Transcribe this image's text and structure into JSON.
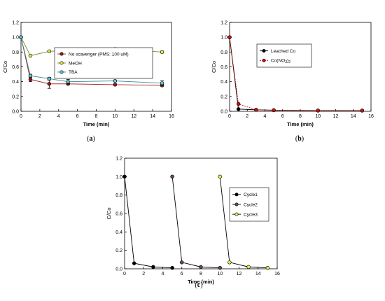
{
  "chart_data": [
    {
      "type": "line",
      "panel_label": "(a)",
      "xlabel": "Time (min)",
      "ylabel": "C/Co",
      "xlim": [
        0,
        16
      ],
      "ylim": [
        0,
        1.2
      ],
      "xticks": [
        "0",
        "2",
        "4",
        "6",
        "8",
        "10",
        "12",
        "14",
        "16"
      ],
      "yticks": [
        "0.0",
        "0.2",
        "0.4",
        "0.6",
        "0.8",
        "1.0",
        "1.2"
      ],
      "legend_position": "center-right",
      "series": [
        {
          "name": "No scavenger (PMS: 100 uM)",
          "color": "#a31515",
          "fill": "#a31515",
          "x": [
            0,
            1,
            3,
            5,
            10,
            15
          ],
          "y": [
            1.0,
            0.43,
            0.37,
            0.37,
            0.36,
            0.35
          ],
          "err": [
            0,
            0.03,
            0.06,
            0.01,
            0.01,
            0.01
          ]
        },
        {
          "name": "MeOH",
          "color": "#6b8e23",
          "fill": "#e6e84a",
          "x": [
            0,
            1,
            3,
            5,
            10,
            15
          ],
          "y": [
            1.0,
            0.75,
            0.81,
            0.82,
            0.84,
            0.8
          ],
          "err": [
            0,
            0,
            0.01,
            0.03,
            0.01,
            0.01
          ]
        },
        {
          "name": "TBA",
          "color": "#3b8a94",
          "fill": "#5fc4d6",
          "x": [
            0,
            1,
            3,
            5,
            10,
            15
          ],
          "y": [
            1.0,
            0.48,
            0.44,
            0.4,
            0.41,
            0.38
          ],
          "err": [
            0,
            0.02,
            0.02,
            0.03,
            0.01,
            0.03
          ]
        }
      ]
    },
    {
      "type": "line",
      "panel_label": "(b)",
      "xlabel": "Time (min)",
      "ylabel": "C/Co",
      "xlim": [
        0,
        16
      ],
      "ylim": [
        0,
        1.2
      ],
      "xticks": [
        "0",
        "2",
        "4",
        "6",
        "8",
        "10",
        "12",
        "14",
        "16"
      ],
      "yticks": [
        "0.0",
        "0.2",
        "0.4",
        "0.6",
        "0.8",
        "1.0",
        "1.2"
      ],
      "legend_position": "top-right",
      "series": [
        {
          "name": "Leached Co",
          "color": "#000000",
          "fill": "#000000",
          "dash": "",
          "x": [
            0,
            1,
            3,
            5,
            10,
            15
          ],
          "y": [
            1.0,
            0.03,
            0.02,
            0.015,
            0.01,
            0.01
          ]
        },
        {
          "name": "Co(NO3)2",
          "name_main": "Co(NO",
          "name_sub1": "3",
          "name_mid": ")",
          "name_sub2": "2",
          "color": "#d01010",
          "fill": "#d01010",
          "dash": "2,1.5",
          "x": [
            0,
            1,
            3,
            5,
            10,
            15
          ],
          "y": [
            1.0,
            0.1,
            0.02,
            0.015,
            0.01,
            0.01
          ]
        }
      ]
    },
    {
      "type": "line",
      "panel_label": "(c)",
      "xlabel": "Time (min)",
      "ylabel": "C/Co",
      "xlim": [
        0,
        16
      ],
      "ylim": [
        0,
        1.2
      ],
      "xticks": [
        "0",
        "2",
        "4",
        "6",
        "8",
        "10",
        "12",
        "14",
        "16"
      ],
      "yticks": [
        "0.0",
        "0.2",
        "0.4",
        "0.6",
        "0.8",
        "1.0",
        "1.2"
      ],
      "legend_position": "right",
      "series": [
        {
          "name": "Cycle1",
          "color": "#000000",
          "fill": "#000000",
          "x": [
            0,
            1,
            3,
            5
          ],
          "y": [
            1.0,
            0.06,
            0.02,
            0.01
          ]
        },
        {
          "name": "Cycle2",
          "color": "#000000",
          "fill": "#6b4a3a",
          "x": [
            5,
            6,
            8,
            10
          ],
          "y": [
            1.0,
            0.07,
            0.02,
            0.01
          ]
        },
        {
          "name": "Cycle3",
          "color": "#000000",
          "fill": "#e6e84a",
          "x": [
            10,
            11,
            13,
            15
          ],
          "y": [
            1.0,
            0.07,
            0.02,
            0.01
          ]
        }
      ]
    }
  ]
}
